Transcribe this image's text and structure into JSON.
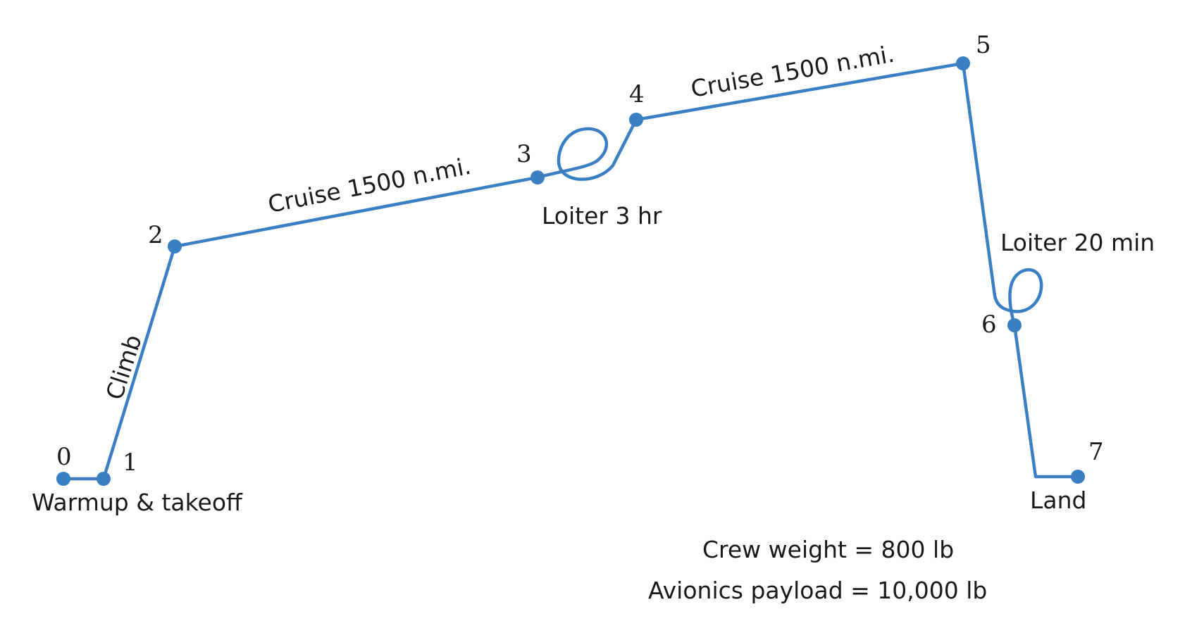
{
  "diagram": {
    "points": [
      "0",
      "1",
      "2",
      "3",
      "4",
      "5",
      "6",
      "7"
    ],
    "segments": {
      "warmup": "Warmup & takeoff",
      "climb": "Climb",
      "cruise1": "Cruise 1500 n.mi.",
      "loiter1": "Loiter 3 hr",
      "cruise2": "Cruise 1500 n.mi.",
      "loiter2": "Loiter 20 min",
      "land": "Land"
    },
    "notes": {
      "crew": "Crew weight = 800 lb",
      "avionics": "Avionics payload = 10,000 lb"
    },
    "line_color": "#3a7fc4"
  }
}
